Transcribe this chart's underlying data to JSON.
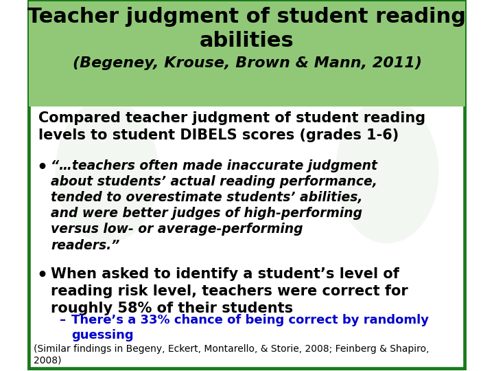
{
  "title_line1": "Teacher judgment of student reading",
  "title_line2": "abilities",
  "subtitle": "(Begeney, Krouse, Brown & Mann, 2011)",
  "title_bg_color": "#90c878",
  "body_bg_color": "#ffffff",
  "border_color": "#1a7a1a",
  "watermark_color": "#c8e0c0",
  "body_text1": "Compared teacher judgment of student reading\nlevels to student DIBELS scores (grades 1-6)",
  "bullet1_italic": "“…teachers often made inaccurate judgment\nabout students’ actual reading performance,\ntended to overestimate students’ abilities,\nand were better judges of high-performing\nversus low- or average-performing\nreaders.”",
  "bullet2_normal": "When asked to identify a student’s level of\nreading risk level, teachers were correct for\nroughly 58% of their students",
  "sub_bullet": "There’s a 33% chance of being correct by randomly\nguessing",
  "footer": "(Similar findings in Begeny, Eckert, Montarello, & Storie, 2008; Feinberg & Shapiro,\n2008)",
  "title_color": "#000000",
  "body_color": "#000000",
  "italic_color": "#000000",
  "sub_bullet_color": "#0000cc",
  "footer_color": "#000000"
}
